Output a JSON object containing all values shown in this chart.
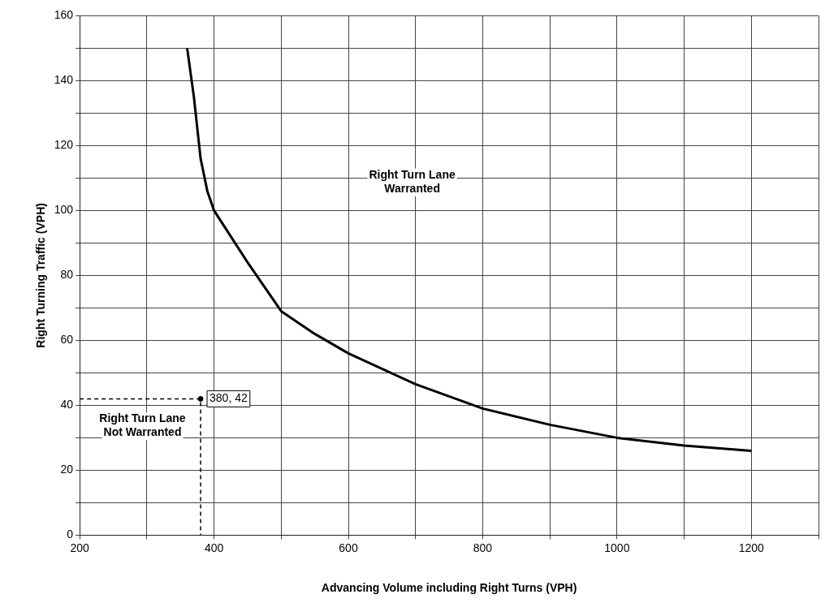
{
  "chart_data": {
    "type": "line",
    "xlabel": "Advancing Volume including Right Turns (VPH)",
    "ylabel": "Right Turning Traffic (VPH)",
    "xlim": [
      200,
      1300
    ],
    "xticks": [
      200,
      {
        "value": 300,
        "label": null
      },
      400,
      {
        "value": 500,
        "label": null
      },
      600,
      {
        "value": 700,
        "label": null
      },
      800,
      {
        "value": 900,
        "label": null
      },
      1000,
      {
        "value": 1100,
        "label": null
      },
      1200,
      {
        "value": 1300,
        "label": null
      }
    ],
    "ylim": [
      0,
      160
    ],
    "yticks": [
      0,
      {
        "value": 10,
        "label": null
      },
      20,
      {
        "value": 30,
        "label": null
      },
      40,
      {
        "value": 50,
        "label": null
      },
      60,
      {
        "value": 70,
        "label": null
      },
      80,
      {
        "value": 90,
        "label": null
      },
      100,
      {
        "value": 110,
        "label": null
      },
      120,
      {
        "value": 130,
        "label": null
      },
      140,
      {
        "value": 150,
        "label": null
      },
      160
    ],
    "grid": true,
    "legend": false,
    "series": [
      {
        "type": "line",
        "color": "#000000",
        "marker": "none",
        "line_style": "solid",
        "x": [
          360,
          370,
          380,
          390,
          400,
          450,
          500,
          550,
          600,
          700,
          800,
          900,
          1000,
          1100,
          1200
        ],
        "values": [
          150,
          135,
          116,
          106,
          100,
          84,
          69,
          62,
          56,
          46.5,
          39,
          34,
          30,
          27.6,
          26
        ]
      },
      {
        "type": "line",
        "color": "#000000",
        "marker": "none",
        "line_style": "dashed",
        "x": [
          200,
          380,
          380
        ],
        "values": [
          42,
          42,
          0
        ]
      },
      {
        "type": "scatter",
        "color": "#000000",
        "marker": "circle",
        "x": [
          380
        ],
        "values": [
          42
        ],
        "value_labels": [
          "380, 42"
        ]
      }
    ],
    "annotations": [
      "Right Turn Lane Warranted",
      "Right Turn Lane Not Warranted"
    ]
  }
}
